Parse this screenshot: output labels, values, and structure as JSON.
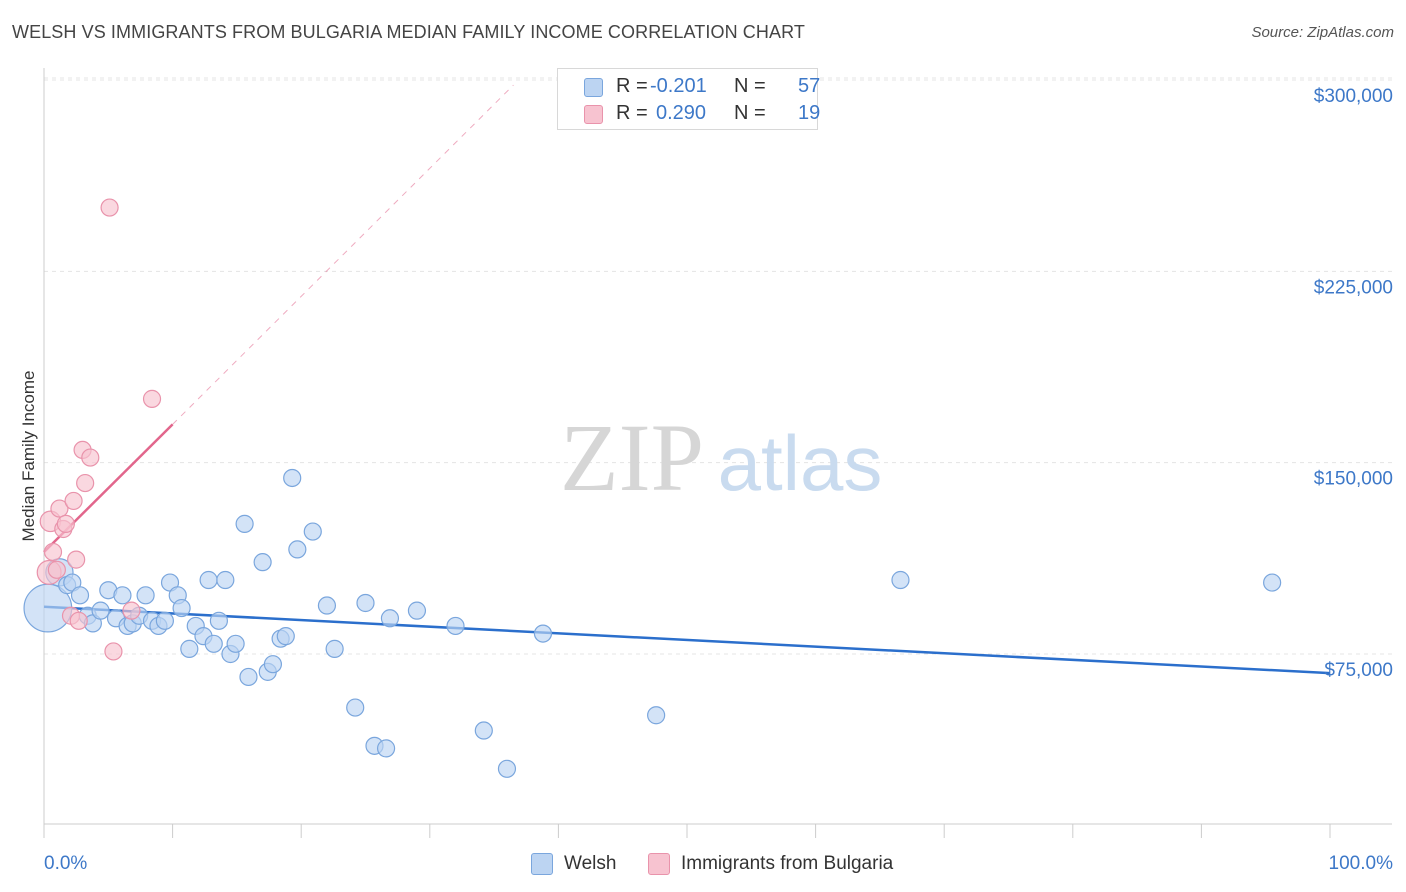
{
  "title": "WELSH VS IMMIGRANTS FROM BULGARIA MEDIAN FAMILY INCOME CORRELATION CHART",
  "source": "Source: ZipAtlas.com",
  "watermark": {
    "zip": "ZIP",
    "atlas": "atlas"
  },
  "legend": {
    "welsh": {
      "r_label": "R =",
      "r_value": "-0.201",
      "n_label": "N =",
      "n_value": "57"
    },
    "bulgaria": {
      "r_label": "R =",
      "r_value": "0.290",
      "n_label": "N =",
      "n_value": "19"
    }
  },
  "colors": {
    "welsh_fill": "#bcd4f2",
    "welsh_stroke": "#7aa6dd",
    "welsh_line": "#2b6fcc",
    "bulgaria_fill": "#f7c3d0",
    "bulgaria_stroke": "#e993ab",
    "bulgaria_line": "#e2668c",
    "axis_text": "#3d78c8",
    "grid": "#e4e4e4"
  },
  "chart_data": {
    "type": "scatter",
    "title": "WELSH VS IMMIGRANTS FROM BULGARIA MEDIAN FAMILY INCOME CORRELATION CHART",
    "xlabel": "",
    "ylabel": "Median Family Income",
    "xlim": [
      0,
      100
    ],
    "ylim": [
      0,
      312000
    ],
    "x_tick_labels": [
      "0.0%",
      "100.0%"
    ],
    "y_ticks": [
      75000,
      150000,
      225000,
      300000
    ],
    "y_tick_labels": [
      "$75,000",
      "$150,000",
      "$225,000",
      "$300,000"
    ],
    "legend_position": "top-center",
    "series": [
      {
        "name": "Welsh",
        "points": [
          [
            0.3,
            93000,
            28
          ],
          [
            1.2,
            107000,
            16
          ],
          [
            1.8,
            102000,
            10
          ],
          [
            2.2,
            103000,
            10
          ],
          [
            2.8,
            98000,
            10
          ],
          [
            3.4,
            90000,
            10
          ],
          [
            3.8,
            87000,
            10
          ],
          [
            4.4,
            92000,
            10
          ],
          [
            5.0,
            100000,
            10
          ],
          [
            5.6,
            89000,
            10
          ],
          [
            6.1,
            98000,
            10
          ],
          [
            6.5,
            86000,
            10
          ],
          [
            6.9,
            87000,
            10
          ],
          [
            7.4,
            90000,
            10
          ],
          [
            7.9,
            98000,
            10
          ],
          [
            8.4,
            88000,
            10
          ],
          [
            8.9,
            86000,
            10
          ],
          [
            9.4,
            88000,
            10
          ],
          [
            9.8,
            103000,
            10
          ],
          [
            10.4,
            98000,
            10
          ],
          [
            10.7,
            93000,
            10
          ],
          [
            11.3,
            77000,
            10
          ],
          [
            11.8,
            86000,
            10
          ],
          [
            12.4,
            82000,
            10
          ],
          [
            12.8,
            104000,
            10
          ],
          [
            13.2,
            79000,
            10
          ],
          [
            13.6,
            88000,
            10
          ],
          [
            14.1,
            104000,
            10
          ],
          [
            14.5,
            75000,
            10
          ],
          [
            14.9,
            79000,
            10
          ],
          [
            15.6,
            126000,
            10
          ],
          [
            15.9,
            66000,
            10
          ],
          [
            17.0,
            111000,
            10
          ],
          [
            17.4,
            68000,
            10
          ],
          [
            17.8,
            71000,
            10
          ],
          [
            18.4,
            81000,
            10
          ],
          [
            18.8,
            82000,
            10
          ],
          [
            19.3,
            144000,
            10
          ],
          [
            19.7,
            116000,
            10
          ],
          [
            20.9,
            123000,
            10
          ],
          [
            22.0,
            94000,
            10
          ],
          [
            22.6,
            77000,
            10
          ],
          [
            24.2,
            54000,
            10
          ],
          [
            25.0,
            95000,
            10
          ],
          [
            25.7,
            39000,
            10
          ],
          [
            26.6,
            38000,
            10
          ],
          [
            26.9,
            89000,
            10
          ],
          [
            29.0,
            92000,
            10
          ],
          [
            32.0,
            86000,
            10
          ],
          [
            34.2,
            45000,
            10
          ],
          [
            36.0,
            30000,
            10
          ],
          [
            38.8,
            83000,
            10
          ],
          [
            47.6,
            51000,
            10
          ],
          [
            66.6,
            104000,
            10
          ],
          [
            95.5,
            103000,
            10
          ]
        ]
      },
      {
        "name": "Immigrants from Bulgaria",
        "points": [
          [
            0.4,
            107000,
            14
          ],
          [
            0.5,
            127000,
            12
          ],
          [
            0.7,
            115000,
            10
          ],
          [
            1.0,
            108000,
            10
          ],
          [
            1.2,
            132000,
            10
          ],
          [
            1.5,
            124000,
            10
          ],
          [
            1.7,
            126000,
            10
          ],
          [
            2.1,
            90000,
            10
          ],
          [
            2.3,
            135000,
            10
          ],
          [
            2.5,
            112000,
            10
          ],
          [
            2.7,
            88000,
            10
          ],
          [
            3.0,
            155000,
            10
          ],
          [
            3.2,
            142000,
            10
          ],
          [
            3.6,
            152000,
            10
          ],
          [
            5.1,
            250000,
            10
          ],
          [
            5.4,
            76000,
            10
          ],
          [
            6.8,
            92000,
            10
          ],
          [
            8.4,
            175000,
            10
          ]
        ]
      }
    ],
    "trend_lines": [
      {
        "series": "Welsh",
        "from": [
          0,
          93500
        ],
        "to": [
          100,
          67500
        ],
        "style": "solid"
      },
      {
        "series": "Immigrants from Bulgaria",
        "from": [
          0,
          115000
        ],
        "to": [
          10.0,
          165000
        ],
        "style": "solid"
      },
      {
        "series": "Immigrants from Bulgaria",
        "from": [
          10.0,
          165000
        ],
        "to": [
          36.5,
          298000
        ],
        "style": "dashed"
      }
    ]
  },
  "bottom_legend": {
    "welsh": "Welsh",
    "bulgaria": "Immigrants from Bulgaria"
  }
}
